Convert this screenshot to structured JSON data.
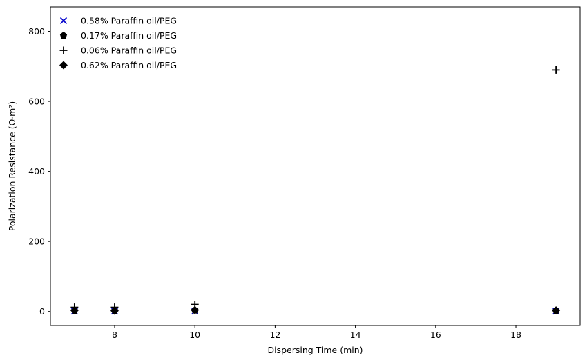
{
  "chart_data": {
    "type": "scatter",
    "title": "",
    "xlabel": "Dispersing Time (min)",
    "ylabel": "Polarization Resistance (Ω·m²)",
    "xlim": [
      6.4,
      19.6
    ],
    "ylim": [
      -40,
      870
    ],
    "xticks": [
      8,
      10,
      12,
      14,
      16,
      18
    ],
    "yticks": [
      0,
      200,
      400,
      600,
      800
    ],
    "grid": false,
    "legend_position": "top-left",
    "series": [
      {
        "name": "0.58% Paraffin oil/PEG",
        "marker": "x",
        "color": "#0000cc",
        "points": [
          {
            "x": 7,
            "y": 1
          },
          {
            "x": 8,
            "y": 1
          },
          {
            "x": 10,
            "y": 1
          },
          {
            "x": 19,
            "y": 1
          }
        ]
      },
      {
        "name": "0.17% Paraffin oil/PEG",
        "marker": "pentagon",
        "color": "#000000",
        "points": [
          {
            "x": 7,
            "y": 2
          },
          {
            "x": 8,
            "y": 2
          },
          {
            "x": 10,
            "y": 3
          },
          {
            "x": 19,
            "y": 2
          }
        ]
      },
      {
        "name": "0.06% Paraffin oil/PEG",
        "marker": "plus",
        "color": "#000000",
        "points": [
          {
            "x": 7,
            "y": 12
          },
          {
            "x": 8,
            "y": 12
          },
          {
            "x": 10,
            "y": 20
          },
          {
            "x": 19,
            "y": 690
          }
        ]
      },
      {
        "name": "0.62% Paraffin oil/PEG",
        "marker": "diamond",
        "color": "#000000",
        "points": [
          {
            "x": 7,
            "y": 3
          },
          {
            "x": 8,
            "y": 2
          },
          {
            "x": 10,
            "y": 4
          },
          {
            "x": 19,
            "y": 3
          }
        ]
      }
    ]
  }
}
